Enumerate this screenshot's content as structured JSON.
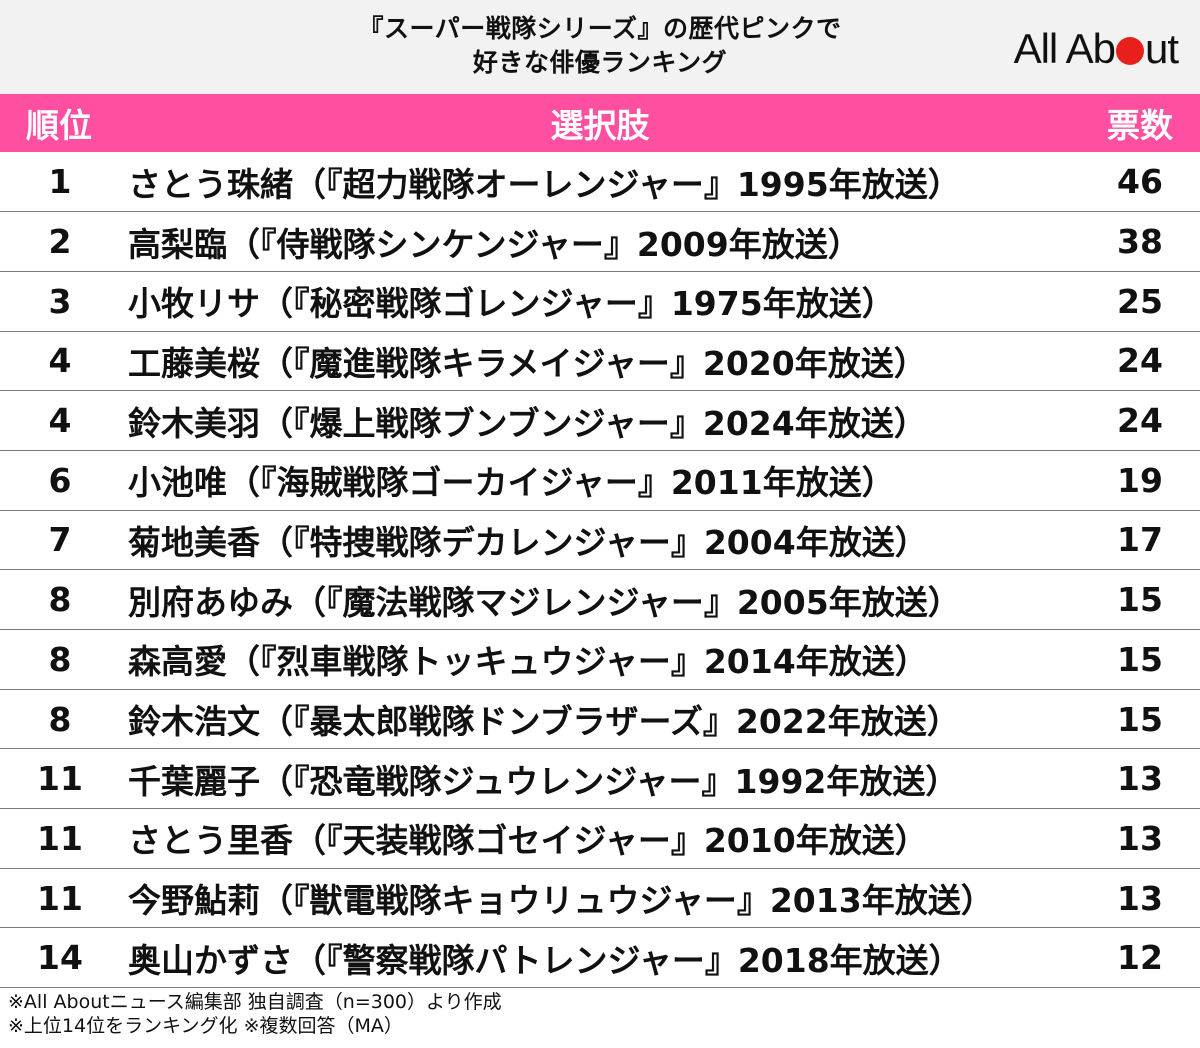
{
  "header": {
    "title_line1": "『スーパー戦隊シリーズ』の歴代ピンクで",
    "title_line2": "好きな俳優ランキング",
    "logo_left": "All Ab",
    "logo_right": "ut",
    "logo_dot_color": "#e8201c"
  },
  "table": {
    "header_color": "#ff4fa0",
    "columns": {
      "rank": "順位",
      "choice": "選択肢",
      "votes": "票数"
    },
    "rows": [
      {
        "rank": "1",
        "choice": "さとう珠緒（『超力戦隊オーレンジャー』1995年放送）",
        "votes": "46"
      },
      {
        "rank": "2",
        "choice": "高梨臨（『侍戦隊シンケンジャー』2009年放送）",
        "votes": "38"
      },
      {
        "rank": "3",
        "choice": "小牧リサ（『秘密戦隊ゴレンジャー』1975年放送）",
        "votes": "25"
      },
      {
        "rank": "4",
        "choice": "工藤美桜（『魔進戦隊キラメイジャー』2020年放送）",
        "votes": "24"
      },
      {
        "rank": "4",
        "choice": "鈴木美羽（『爆上戦隊ブンブンジャー』2024年放送）",
        "votes": "24"
      },
      {
        "rank": "6",
        "choice": "小池唯（『海賊戦隊ゴーカイジャー』2011年放送）",
        "votes": "19"
      },
      {
        "rank": "7",
        "choice": "菊地美香（『特捜戦隊デカレンジャー』2004年放送）",
        "votes": "17"
      },
      {
        "rank": "8",
        "choice": "別府あゆみ（『魔法戦隊マジレンジャー』2005年放送）",
        "votes": "15"
      },
      {
        "rank": "8",
        "choice": "森高愛（『烈車戦隊トッキュウジャー』2014年放送）",
        "votes": "15"
      },
      {
        "rank": "8",
        "choice": "鈴木浩文（『暴太郎戦隊ドンブラザーズ』2022年放送）",
        "votes": "15"
      },
      {
        "rank": "11",
        "choice": "千葉麗子（『恐竜戦隊ジュウレンジャー』1992年放送）",
        "votes": "13"
      },
      {
        "rank": "11",
        "choice": "さとう里香（『天装戦隊ゴセイジャー』2010年放送）",
        "votes": "13"
      },
      {
        "rank": "11",
        "choice": "今野鮎莉（『獣電戦隊キョウリュウジャー』2013年放送）",
        "votes": "13"
      },
      {
        "rank": "14",
        "choice": "奥山かずさ（『警察戦隊パトレンジャー』2018年放送）",
        "votes": "12"
      }
    ]
  },
  "notes": [
    "※All Aboutニュース編集部 独自調査（n=300）より作成",
    "※上位14位をランキング化 ※複数回答（MA）"
  ]
}
